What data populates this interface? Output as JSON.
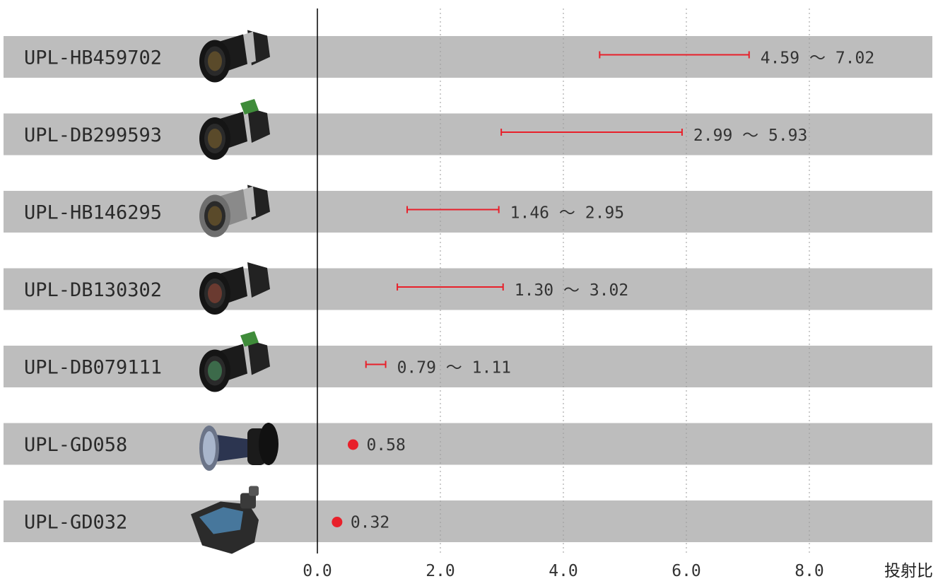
{
  "chart_data": {
    "type": "range-bar",
    "xlabel": "投射比",
    "xlim": [
      0,
      10
    ],
    "xticks": [
      "0.0",
      "2.0",
      "4.0",
      "6.0",
      "8.0"
    ],
    "grid": "vertical-dotted",
    "colors": {
      "band": "#bdbdbd",
      "mark": "#e8202a",
      "axis": "#000000",
      "grid": "#9a9a9a"
    },
    "rows": [
      {
        "model": "UPL-HB459702",
        "min": 4.59,
        "max": 7.02,
        "label": "4.59 ～ 7.02",
        "icon": "lens-zoom-long-icon"
      },
      {
        "model": "UPL-DB299593",
        "min": 2.99,
        "max": 5.93,
        "label": "2.99 ～ 5.93",
        "icon": "lens-zoom-icon"
      },
      {
        "model": "UPL-HB146295",
        "min": 1.46,
        "max": 2.95,
        "label": "1.46 ～ 2.95",
        "icon": "lens-zoom-gray-icon"
      },
      {
        "model": "UPL-DB130302",
        "min": 1.3,
        "max": 3.02,
        "label": "1.30 ～ 3.02",
        "icon": "lens-standard-icon"
      },
      {
        "model": "UPL-DB079111",
        "min": 0.79,
        "max": 1.11,
        "label": "0.79 ～ 1.11",
        "icon": "lens-wide-icon"
      },
      {
        "model": "UPL-GD058",
        "value": 0.58,
        "label": "0.58",
        "icon": "lens-fisheye-icon"
      },
      {
        "model": "UPL-GD032",
        "value": 0.32,
        "label": "0.32",
        "icon": "lens-ultra-short-throw-icon"
      }
    ]
  }
}
